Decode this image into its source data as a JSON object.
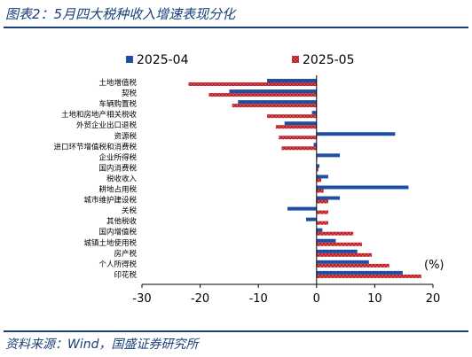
{
  "header": {
    "title": "图表2：5月四大税种收入增速表现分化"
  },
  "footer": {
    "source": "资料来源：Wind，国盛证券研究所"
  },
  "colors": {
    "blue": "#1f4fa3",
    "red": "#c0181f",
    "title": "#1a3f7a"
  },
  "chart_data": {
    "type": "bar",
    "orientation": "horizontal",
    "unit_label": "(%)",
    "xlim": [
      -30,
      20
    ],
    "xticks": [
      -30,
      -20,
      -10,
      0,
      10,
      20
    ],
    "legend": {
      "position": "top",
      "entries": [
        "2025-04",
        "2025-05"
      ]
    },
    "categories": [
      "土地增值税",
      "契税",
      "车辆购置税",
      "土地和房地产相关税收",
      "外贸企业出口退税",
      "资源税",
      "进口环节增值税和消费税",
      "企业所得税",
      "国内消费税",
      "税收收入",
      "耕地占用税",
      "城市维护建设税",
      "关税",
      "其他税收",
      "国内增值税",
      "城镇土地使用税",
      "房产税",
      "个人所得税",
      "印花税"
    ],
    "series": [
      {
        "name": "2025-04",
        "values": [
          -8.5,
          -15.0,
          -13.5,
          -0.8,
          -5.5,
          13.5,
          -0.5,
          4.0,
          0.5,
          2.0,
          15.8,
          4.0,
          -5.0,
          -1.8,
          1.0,
          3.3,
          7.0,
          9.0,
          14.8
        ]
      },
      {
        "name": "2025-05",
        "values": [
          -22.0,
          -18.5,
          -14.5,
          -8.5,
          -7.0,
          -6.5,
          -6.0,
          0.0,
          0.3,
          0.8,
          1.2,
          2.0,
          2.0,
          2.0,
          6.3,
          7.8,
          9.5,
          12.5,
          18.0
        ]
      }
    ]
  }
}
